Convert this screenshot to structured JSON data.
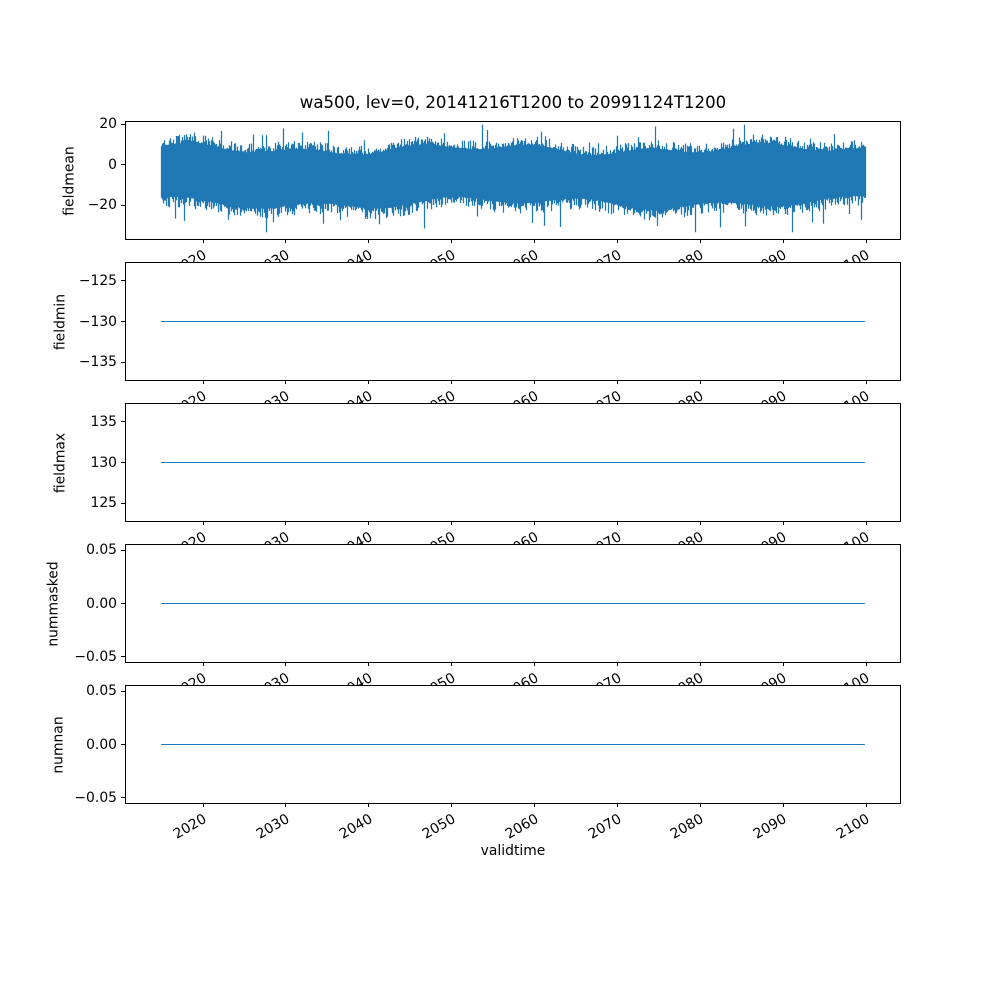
{
  "chart_data": {
    "type": "line",
    "title": "wa500, lev=0, 20141216T1200 to 20991124T1200",
    "xlabel": "validtime",
    "xlim": [
      2010.7,
      2104.1
    ],
    "x_start": 2014.96,
    "x_end": 2099.9,
    "x_start_label": "20141216T1200",
    "x_end_label": "20991124T1200",
    "x_ticks": [
      2020,
      2030,
      2040,
      2050,
      2060,
      2070,
      2080,
      2090,
      2100
    ],
    "x_tick_labels": [
      "2020",
      "2030",
      "2040",
      "2050",
      "2060",
      "2070",
      "2080",
      "2090",
      "2100"
    ],
    "grid": false,
    "legend": "none",
    "line_color": "#1f77b4",
    "panels": [
      {
        "ylabel": "fieldmean",
        "series_type": "noisy",
        "ylim": [
          -36.8,
          21.0
        ],
        "ytick_values": [
          20,
          0,
          -20
        ],
        "ytick_labels": [
          "20",
          "0",
          "−20"
        ],
        "noise": {
          "seed": 7,
          "approx_mean": -6,
          "core_band": [
            -21,
            9
          ],
          "min": -33.5,
          "max": 19.7,
          "top_base": 7.5,
          "bottom_base": -19.0,
          "top_spike_prob": 0.04,
          "bottom_spike_prob": 0.05
        }
      },
      {
        "ylabel": "fieldmin",
        "series_type": "constant",
        "value": -130,
        "ylim": [
          -137.2,
          -122.8
        ],
        "ytick_values": [
          -125,
          -130,
          -135
        ],
        "ytick_labels": [
          "−125",
          "−130",
          "−135"
        ]
      },
      {
        "ylabel": "fieldmax",
        "series_type": "constant",
        "value": 130,
        "ylim": [
          122.8,
          137.2
        ],
        "ytick_values": [
          135,
          130,
          125
        ],
        "ytick_labels": [
          "135",
          "130",
          "125"
        ]
      },
      {
        "ylabel": "nummasked",
        "series_type": "constant",
        "value": 0,
        "ylim": [
          -0.055,
          0.055
        ],
        "ytick_values": [
          0.05,
          0,
          -0.05
        ],
        "ytick_labels": [
          "0.05",
          "0.00",
          "−0.05"
        ]
      },
      {
        "ylabel": "numnan",
        "series_type": "constant",
        "value": 0,
        "ylim": [
          -0.055,
          0.055
        ],
        "ytick_values": [
          0.05,
          0,
          -0.05
        ],
        "ytick_labels": [
          "0.05",
          "0.00",
          "−0.05"
        ]
      }
    ]
  }
}
